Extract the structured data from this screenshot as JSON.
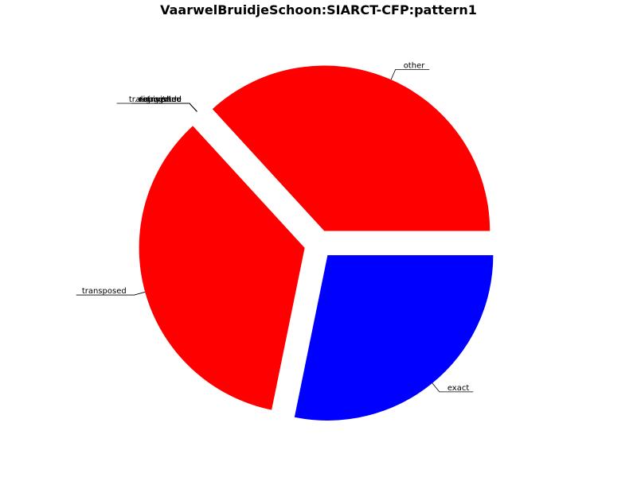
{
  "chart_data": {
    "type": "pie",
    "title": "VaarwelBruidjeSchoon:SIARCT-CFP:pattern1",
    "slices": [
      {
        "label": "exact",
        "value": 28.2,
        "color": "#0000ff"
      },
      {
        "label": "transposed",
        "value": 35.0,
        "color": "#ff0000"
      },
      {
        "label": "tr.+aug./dim.",
        "value": 0,
        "color": "#ff0000"
      },
      {
        "label": "augmented",
        "value": 0,
        "color": "#ff0000"
      },
      {
        "label": "diminished",
        "value": 0,
        "color": "#ff0000"
      },
      {
        "label": "inverted",
        "value": 0,
        "color": "#ff0000"
      },
      {
        "label": "retrograde",
        "value": 0,
        "color": "#ff0000"
      },
      {
        "label": "other",
        "value": 36.8,
        "color": "#ff0000"
      }
    ],
    "start_angle_deg": 0,
    "direction": "clockwise",
    "exploded": true,
    "legend": "none"
  }
}
